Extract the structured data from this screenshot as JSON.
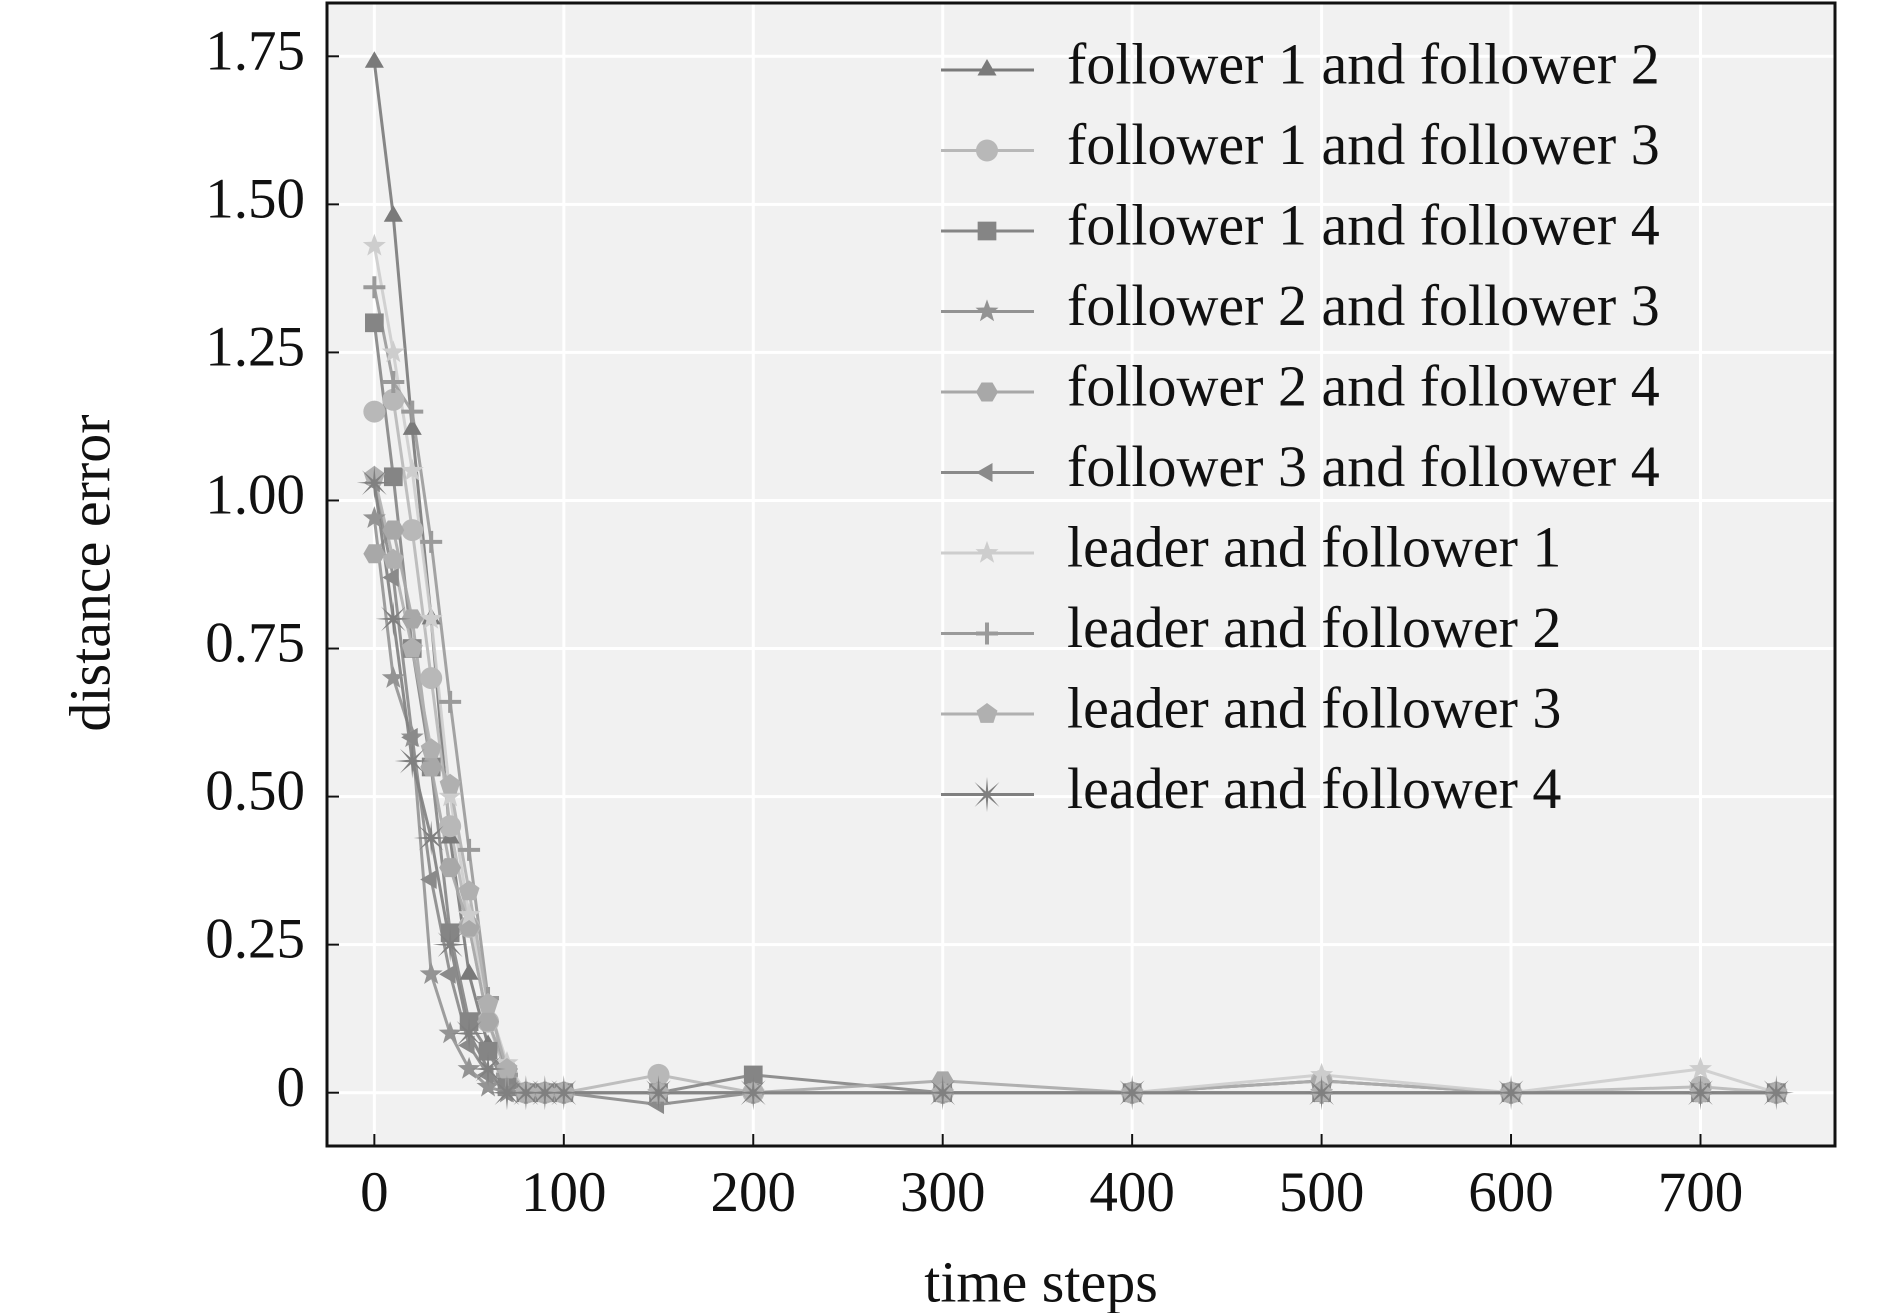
{
  "chart_data": {
    "type": "line",
    "xlabel": "time steps",
    "ylabel": "distance error",
    "xlim": [
      -25,
      771
    ],
    "ylim": [
      -0.09,
      1.84
    ],
    "xticks": [
      0,
      100,
      200,
      300,
      400,
      500,
      600,
      700
    ],
    "yticks": [
      0,
      0.25,
      {
        "value": 0.5,
        "label": "0.50"
      },
      0.75,
      {
        "value": 1,
        "label": "1.00"
      },
      1.25,
      {
        "value": 1.5,
        "label": "1.50"
      },
      1.75
    ],
    "grid": true,
    "legend": "upper right",
    "x": [
      0,
      10,
      20,
      30,
      40,
      50,
      60,
      70,
      80,
      90,
      100,
      150,
      200,
      300,
      400,
      500,
      600,
      700,
      740
    ],
    "series": [
      {
        "name": "follower 1 and follower 2",
        "color": "#7a7a7a",
        "marker": "triangle",
        "values": [
          1.74,
          1.48,
          1.12,
          0.8,
          0.43,
          0.2,
          0.08,
          0.02,
          0,
          0,
          0,
          0,
          0,
          0,
          0,
          0.02,
          0,
          0,
          0
        ]
      },
      {
        "name": "follower 1 and follower 3",
        "color": "#b8b8b8",
        "marker": "circle",
        "values": [
          1.15,
          1.17,
          0.95,
          0.7,
          0.45,
          0.28,
          0.12,
          0.03,
          0,
          0,
          0,
          0.03,
          0,
          0,
          0,
          0.02,
          0,
          0.01,
          0
        ]
      },
      {
        "name": "follower 1 and follower 4",
        "color": "#858585",
        "marker": "square",
        "values": [
          1.3,
          1.04,
          0.75,
          0.55,
          0.27,
          0.12,
          0.07,
          0.01,
          0,
          0,
          0,
          0,
          0.03,
          0,
          0,
          0,
          0,
          0,
          0
        ]
      },
      {
        "name": "follower 2 and follower 3",
        "color": "#939393",
        "marker": "star",
        "values": [
          0.97,
          0.7,
          0.6,
          0.2,
          0.1,
          0.04,
          0.01,
          0,
          0,
          0,
          0,
          0,
          0,
          0,
          0,
          0,
          0,
          0,
          0
        ]
      },
      {
        "name": "follower 2 and follower 4",
        "color": "#a8a8a8",
        "marker": "hexagon",
        "values": [
          0.91,
          0.95,
          0.8,
          0.55,
          0.38,
          0.28,
          0.12,
          0.04,
          0,
          0,
          0,
          0,
          0,
          0.02,
          0,
          0.02,
          0,
          0,
          0
        ]
      },
      {
        "name": "follower 3 and follower 4",
        "color": "#8a8a8a",
        "marker": "tri-left",
        "values": [
          1.03,
          0.87,
          0.6,
          0.36,
          0.2,
          0.08,
          0.03,
          0,
          0,
          0,
          0,
          -0.02,
          0,
          0,
          0,
          0,
          0,
          0,
          0
        ]
      },
      {
        "name": "leader and follower 1",
        "color": "#cdcdcd",
        "marker": "star",
        "values": [
          1.43,
          1.25,
          1.05,
          0.8,
          0.5,
          0.3,
          0.15,
          0.05,
          0,
          0,
          0,
          0,
          0,
          0,
          0,
          0.03,
          0,
          0.04,
          0
        ]
      },
      {
        "name": "leader and follower 2",
        "color": "#9a9a9a",
        "marker": "plus",
        "values": [
          1.36,
          1.2,
          1.15,
          0.93,
          0.66,
          0.41,
          0.16,
          0.03,
          0,
          0,
          0,
          0,
          0,
          0,
          0,
          0,
          0,
          0,
          0
        ]
      },
      {
        "name": "leader and follower 3",
        "color": "#b0b0b0",
        "marker": "pentagon",
        "values": [
          1.04,
          0.9,
          0.75,
          0.58,
          0.52,
          0.34,
          0.15,
          0.04,
          0,
          0,
          0,
          0,
          0,
          0,
          0,
          0,
          0,
          0,
          0
        ]
      },
      {
        "name": "leader and follower 4",
        "color": "#808080",
        "marker": "asterisk",
        "values": [
          1.03,
          0.8,
          0.56,
          0.43,
          0.25,
          0.1,
          0.04,
          0,
          0,
          0,
          0,
          0,
          0,
          0,
          0,
          0,
          0,
          0,
          0
        ]
      }
    ]
  }
}
